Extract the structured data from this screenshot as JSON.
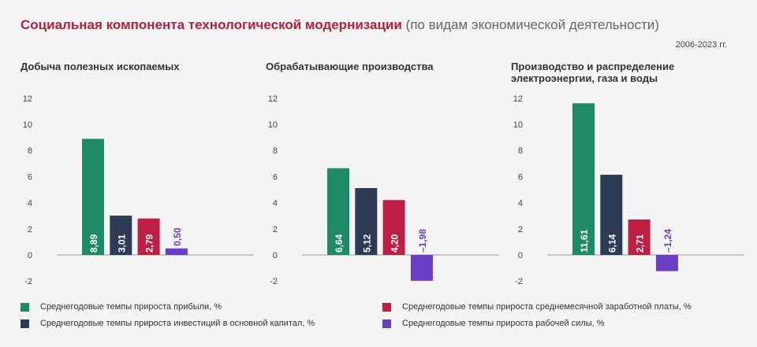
{
  "title": {
    "main": "Социальная компонента технологической модернизации",
    "sub": " (по видам экономической деятельности)"
  },
  "period": "2006-2023 гг.",
  "colors": {
    "profit": "#1e8a66",
    "investment": "#2e3b54",
    "wage": "#c01f45",
    "labor": "#6a3fc4",
    "axis": "#9a9a9a"
  },
  "legend": [
    {
      "key": "profit",
      "label": "Среднегодовые темпы прироста прибыли, %"
    },
    {
      "key": "investment",
      "label": "Среднегодовые темпы прироста инвестиций в основной капитал, %"
    },
    {
      "key": "wage",
      "label": "Среднегодовые темпы прироста среднемесячной заработной платы, %"
    },
    {
      "key": "labor",
      "label": "Среднегодовые темпы прироста рабочей силы, %"
    }
  ],
  "chart_data": [
    {
      "type": "bar",
      "title": [
        "Добыча полезных ископаемых"
      ],
      "ylim": [
        -2,
        12
      ],
      "yticks": [
        "-2",
        "0",
        "2",
        "4",
        "6",
        "8",
        "10",
        "12"
      ],
      "values": [
        8.89,
        3.01,
        2.79,
        0.5
      ],
      "labels": [
        "8,89",
        "3,01",
        "2,79",
        "0,50"
      ],
      "series_keys": [
        "profit",
        "investment",
        "wage",
        "labor"
      ]
    },
    {
      "type": "bar",
      "title": [
        "Обрабатывающие производства"
      ],
      "ylim": [
        -2,
        12
      ],
      "yticks": [
        "-2",
        "0",
        "2",
        "4",
        "6",
        "8",
        "10",
        "12"
      ],
      "values": [
        6.64,
        5.12,
        4.2,
        -1.98
      ],
      "labels": [
        "6,64",
        "5,12",
        "4,20",
        "–1,98"
      ],
      "series_keys": [
        "profit",
        "investment",
        "wage",
        "labor"
      ]
    },
    {
      "type": "bar",
      "title": [
        "Производство и распределение",
        "электроэнергии, газа и воды"
      ],
      "ylim": [
        -2,
        12
      ],
      "yticks": [
        "-2",
        "0",
        "2",
        "4",
        "6",
        "8",
        "10",
        "12"
      ],
      "values": [
        11.61,
        6.14,
        2.71,
        -1.24
      ],
      "labels": [
        "11,61",
        "6,14",
        "2,71",
        "–1,24"
      ],
      "series_keys": [
        "profit",
        "investment",
        "wage",
        "labor"
      ]
    }
  ]
}
